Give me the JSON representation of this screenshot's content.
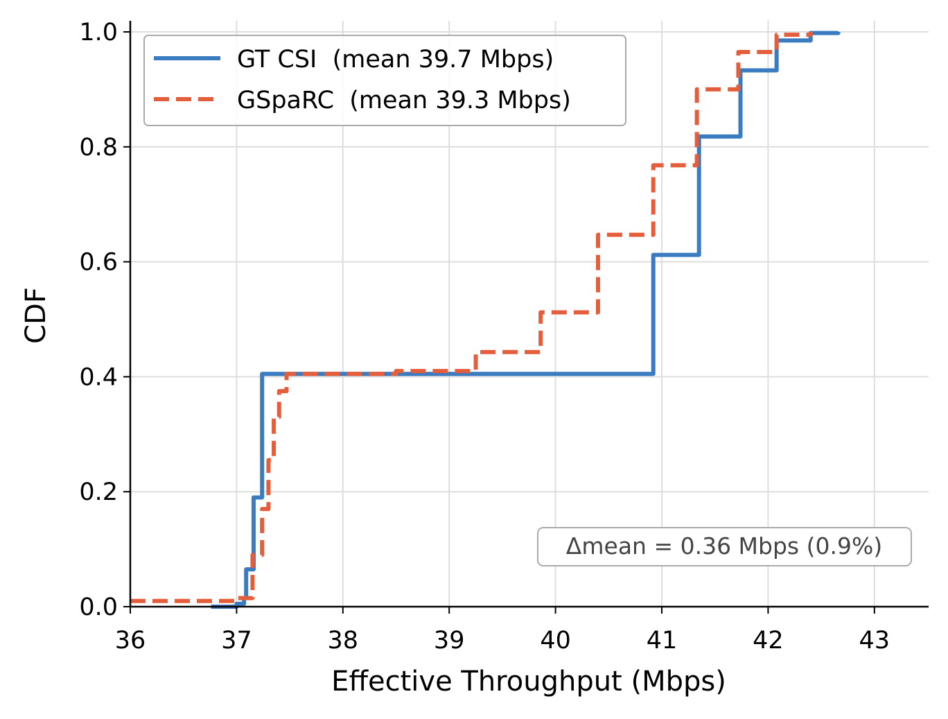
{
  "chart_data": {
    "type": "line",
    "step": true,
    "title": "",
    "xlabel": "Effective Throughput (Mbps)",
    "ylabel": "CDF",
    "xlim": [
      36,
      43.5
    ],
    "ylim": [
      0,
      1.0
    ],
    "xticks": [
      "36",
      "37",
      "38",
      "39",
      "40",
      "41",
      "42",
      "43"
    ],
    "yticks": [
      "0.0",
      "0.2",
      "0.4",
      "0.6",
      "0.8",
      "1.0"
    ],
    "grid": true,
    "legend_position": "top-left",
    "series": [
      {
        "name": "GT CSI  (mean 39.7 Mbps)",
        "color": "#3b7bc0",
        "style": "solid",
        "x": [
          36.76,
          37.0,
          37.07,
          37.09,
          37.16,
          37.24,
          40.92,
          41.35,
          41.74,
          42.08,
          42.4,
          42.66
        ],
        "y": [
          0.0,
          0.005,
          0.015,
          0.065,
          0.19,
          0.405,
          0.612,
          0.818,
          0.933,
          0.985,
          0.998,
          1.0
        ]
      },
      {
        "name": "GSpaRC  (mean 39.3 Mbps)",
        "color": "#e45e3c",
        "style": "dashed",
        "x": [
          36.0,
          37.0,
          37.15,
          37.24,
          37.3,
          37.35,
          37.4,
          37.47,
          38.5,
          39.25,
          39.86,
          40.4,
          40.92,
          41.33,
          41.72,
          42.08,
          42.4
        ],
        "y": [
          0.01,
          0.015,
          0.09,
          0.17,
          0.255,
          0.33,
          0.375,
          0.405,
          0.41,
          0.443,
          0.512,
          0.647,
          0.768,
          0.9,
          0.965,
          0.995,
          1.0
        ]
      }
    ],
    "annotation": "Δmean = 0.36 Mbps (0.9%)"
  }
}
